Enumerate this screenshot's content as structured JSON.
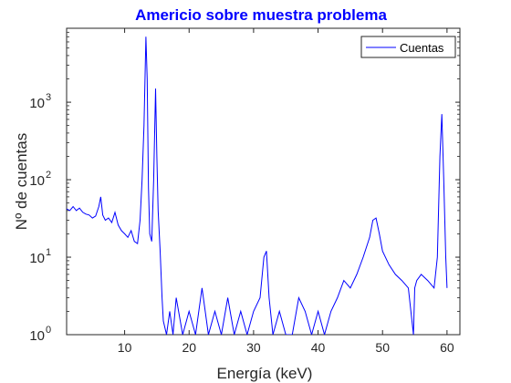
{
  "chart_data": {
    "type": "line",
    "title": "Americio sobre muestra problema",
    "xlabel": "Energía (keV)",
    "ylabel": "Nº de cuentas",
    "xlim": [
      1,
      62
    ],
    "ylim": [
      1,
      9000
    ],
    "yscale": "log",
    "grid": false,
    "legend_position": "top-right",
    "colors": {
      "series": "#0000ff",
      "title": "#0000ff",
      "axis": "#262626"
    },
    "x_ticks": [
      10,
      20,
      30,
      40,
      50,
      60
    ],
    "x_tick_labels": [
      "10",
      "20",
      "30",
      "40",
      "50",
      "60"
    ],
    "y_ticks": [
      1,
      10,
      100,
      1000
    ],
    "y_tick_labels": [
      {
        "base": "10",
        "exp": "0"
      },
      {
        "base": "10",
        "exp": "1"
      },
      {
        "base": "10",
        "exp": "2"
      },
      {
        "base": "10",
        "exp": "3"
      }
    ],
    "series": [
      {
        "name": "Cuentas",
        "x": [
          1.0,
          1.5,
          2.0,
          2.5,
          3.0,
          3.5,
          4.0,
          4.5,
          5.0,
          5.5,
          6.0,
          6.3,
          6.6,
          7.0,
          7.5,
          8.0,
          8.5,
          9.0,
          9.5,
          10.0,
          10.5,
          11.0,
          11.5,
          12.0,
          12.4,
          12.7,
          13.0,
          13.3,
          13.5,
          13.7,
          13.9,
          14.2,
          14.5,
          14.8,
          15.0,
          15.2,
          15.5,
          15.8,
          16.0,
          16.5,
          17.0,
          17.5,
          18.0,
          19.0,
          20.0,
          21.0,
          22.0,
          23.0,
          24.0,
          25.0,
          26.0,
          27.0,
          28.0,
          29.0,
          30.0,
          31.0,
          31.6,
          32.0,
          32.4,
          33.0,
          34.0,
          35.0,
          36.0,
          37.0,
          38.0,
          39.0,
          40.0,
          41.0,
          42.0,
          43.0,
          44.0,
          45.0,
          46.0,
          47.0,
          48.0,
          48.5,
          49.0,
          49.5,
          50.0,
          51.0,
          52.0,
          53.0,
          54.0,
          54.8,
          55.0,
          55.3,
          56.0,
          57.0,
          58.0,
          58.5,
          58.9,
          59.2,
          59.5,
          59.8,
          60.0
        ],
        "y": [
          42,
          40,
          45,
          40,
          43,
          38,
          36,
          35,
          32,
          34,
          45,
          60,
          35,
          30,
          32,
          28,
          38,
          26,
          22,
          20,
          18,
          22,
          16,
          15,
          30,
          100,
          500,
          7000,
          2000,
          80,
          20,
          16,
          100,
          1500,
          200,
          40,
          12,
          3,
          1.5,
          1,
          2,
          1,
          3,
          1,
          2,
          1,
          4,
          1,
          2,
          1,
          3,
          1,
          2,
          1,
          2,
          3,
          10,
          12,
          3,
          1,
          2,
          1,
          1,
          3,
          2,
          1,
          2,
          1,
          2,
          3,
          5,
          4,
          6,
          10,
          18,
          30,
          32,
          20,
          12,
          8,
          6,
          5,
          4,
          1,
          4,
          5,
          6,
          5,
          4,
          10,
          200,
          700,
          100,
          10,
          4
        ]
      }
    ]
  }
}
